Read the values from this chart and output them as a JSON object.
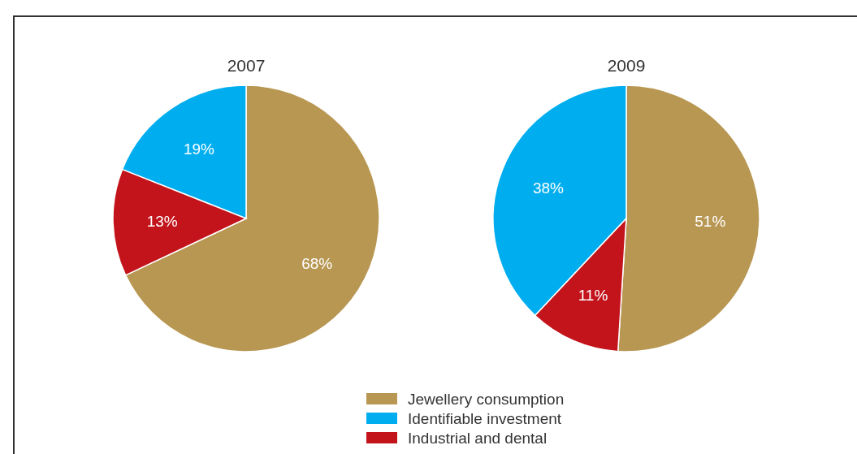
{
  "chart_data": [
    {
      "type": "pie",
      "title": "2007",
      "categories": [
        "Jewellery consumption",
        "Identifiable investment",
        "Industrial and dental"
      ],
      "values": [
        68,
        19,
        13
      ],
      "value_labels": [
        "68%",
        "19%",
        "13%"
      ],
      "colors": [
        "#b89753",
        "#00aeef",
        "#c3131b"
      ],
      "legend": "bottom"
    },
    {
      "type": "pie",
      "title": "2009",
      "categories": [
        null,
        null,
        null
      ],
      "values": [
        51,
        38,
        11
      ],
      "value_labels": [
        "51%",
        "38%",
        "11%"
      ],
      "colors": [
        "#b89753",
        "#00aeef",
        "#c3131b"
      ]
    }
  ]
}
